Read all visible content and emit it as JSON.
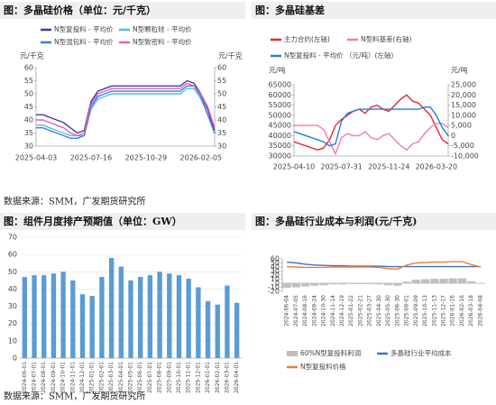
{
  "sources": [
    "数据来源：SMM，广发期货研究所",
    "数据来源：SMM，广发期货研究所"
  ],
  "chart_data": [
    {
      "type": "line",
      "title": "图：多晶硅价格（单位：元/千克）",
      "y_label": "元/千克",
      "y2_label": "元/千克",
      "categories": [
        "2025-04-03",
        null,
        null,
        null,
        null,
        null,
        null,
        null,
        "2025-07-16",
        null,
        null,
        null,
        null,
        null,
        null,
        null,
        "2025-10-29",
        null,
        null,
        null,
        null,
        null,
        null,
        null,
        "2026-02-05",
        null,
        null
      ],
      "series": [
        {
          "name": "N型复投料 - 平均价",
          "color": "#4b3b8f",
          "values": [
            42,
            42,
            41,
            40,
            39,
            37,
            35,
            36,
            47,
            51,
            52,
            53,
            53,
            53,
            53,
            53,
            53,
            53,
            53,
            53,
            53,
            53,
            55,
            54,
            50,
            44,
            36
          ]
        },
        {
          "name": "N型颗粒硅 - 平均价",
          "color": "#4fc3d9",
          "values": [
            38,
            38,
            37,
            36,
            35,
            34,
            34,
            34,
            44,
            48,
            49,
            50,
            50,
            50,
            50,
            50,
            50,
            50,
            50,
            50,
            50,
            50,
            52,
            52,
            48,
            42,
            35
          ]
        },
        {
          "name": "N型混包料 - 平均价",
          "color": "#3d7fd6",
          "values": [
            37,
            37,
            36,
            35,
            34,
            33,
            33,
            34,
            45,
            49,
            50,
            51,
            51,
            51,
            51,
            51,
            51,
            51,
            51,
            51,
            51,
            51,
            53,
            53,
            49,
            42,
            35
          ]
        },
        {
          "name": "N型致密料 - 平均价",
          "color": "#e060c0",
          "values": [
            40,
            40,
            39,
            38,
            37,
            35,
            34,
            35,
            46,
            50,
            51,
            52,
            52,
            52,
            52,
            52,
            52,
            52,
            52,
            52,
            52,
            52,
            54,
            53,
            50,
            45,
            37
          ]
        }
      ],
      "ylim": [
        30,
        60
      ],
      "yticks": [
        30,
        35,
        40,
        45,
        50,
        55,
        60
      ],
      "y2lim": [
        30,
        60
      ],
      "y2ticks": [
        30,
        35,
        40,
        45,
        50,
        55,
        60
      ]
    },
    {
      "type": "line",
      "title": "图：多晶硅基差",
      "y_label": "元/吨",
      "y2_label": "元/吨",
      "categories": [
        "2025-04-10",
        null,
        null,
        null,
        null,
        null,
        null,
        null,
        "2025-07-31",
        null,
        null,
        null,
        null,
        null,
        null,
        null,
        "2025-11-24",
        null,
        null,
        null,
        null,
        null,
        null,
        null,
        "2026-03-20",
        null,
        null
      ],
      "series": [
        {
          "name": "主力合约(左轴)",
          "color": "#e8262a",
          "values": [
            37000,
            36000,
            35000,
            34000,
            33000,
            34000,
            38000,
            45000,
            48000,
            50000,
            52000,
            53000,
            51000,
            54000,
            55000,
            53000,
            52000,
            55000,
            58000,
            60000,
            57000,
            56000,
            53000,
            50000,
            44000,
            38000,
            36000
          ]
        },
        {
          "name": "N型料基差(右轴)",
          "color": "#f07ab8",
          "axis": "y2",
          "values": [
            5000,
            5000,
            5000,
            5000,
            5000,
            3000,
            -3000,
            -9000,
            -1000,
            1000,
            0,
            0,
            2000,
            -1000,
            -2000,
            0,
            1000,
            -2000,
            -5000,
            -7000,
            -4000,
            -3000,
            1000,
            4000,
            6000,
            6000,
            4000
          ]
        },
        {
          "name": "N型复投料 - 平均价 （元/吨）(左轴)",
          "color": "#1f7fe0",
          "values": [
            42000,
            41000,
            40000,
            39000,
            38000,
            37000,
            35000,
            36000,
            47000,
            51000,
            52000,
            53000,
            53000,
            53000,
            53000,
            53000,
            53000,
            53000,
            53000,
            53000,
            53000,
            53000,
            54000,
            54000,
            50000,
            44000,
            40000
          ]
        }
      ],
      "ylim": [
        30000,
        65000
      ],
      "yticks": [
        30000,
        35000,
        40000,
        45000,
        50000,
        55000,
        60000,
        65000
      ],
      "y2lim": [
        -10000,
        25000
      ],
      "y2ticks": [
        {
          "value": -10000,
          "label": "-10,000"
        },
        {
          "value": -5000,
          "label": "-5,000"
        },
        0,
        {
          "value": 5000,
          "label": "5,000"
        },
        {
          "value": 10000,
          "label": "10,000"
        },
        {
          "value": 15000,
          "label": "15,000"
        },
        {
          "value": 20000,
          "label": "20,000"
        },
        {
          "value": 25000,
          "label": "25,000"
        }
      ]
    },
    {
      "type": "bar",
      "title": "图：组件月度排产预期值（单位：GW）",
      "categories": [
        "2024-06-01",
        "2024-07-01",
        "2024-08-01",
        "2024-09-01",
        "2024-10-01",
        "2024-11-01",
        "2024-12-01",
        "2025-01-01",
        "2025-02-01",
        "2025-03-01",
        "2025-04-01",
        "2025-05-01",
        "2025-06-01",
        "2025-07-01",
        "2025-08-01",
        "2025-09-01",
        "2025-10-01",
        "2025-11-01",
        "2025-12-01",
        "2026-01-01",
        "2026-02-01",
        "2026-03-01",
        "2026-04-01"
      ],
      "values": [
        47,
        48,
        48,
        49,
        50,
        45,
        37,
        36,
        47,
        58,
        53,
        45,
        47,
        48,
        50,
        49,
        48,
        46,
        41,
        33,
        31,
        42,
        32
      ],
      "color": "#5b9bd5",
      "grid": true,
      "ylim": [
        0,
        70
      ],
      "yticks": [
        0,
        10,
        20,
        30,
        40,
        50,
        60,
        70
      ]
    },
    {
      "type": "line",
      "title": "图：多晶硅行业成本与利润(元/千克)",
      "categories": [
        "2024-06-04",
        "2024-07-05",
        "2024-08-16",
        "2024-09-24",
        "2024-10-30",
        "2024-11-14",
        "2024-12-19",
        "2025-01-22",
        "2025-02-21",
        "2025-03-27",
        "2025-04-30",
        "2025-05-30",
        "2025-06-30",
        "2025-08-01",
        "2025-09-09",
        "2025-10-13",
        "2025-11-13",
        "2025-12-17",
        "2026-01-16",
        "2026-02-16",
        "2026-03-18",
        "2026-04-08"
      ],
      "series": [
        {
          "name": "60%N型复投料利润",
          "color": "#bfbfbf",
          "style": "bar",
          "values": [
            -11,
            -10,
            -8,
            -6,
            -5,
            -3,
            -3,
            -2,
            -2,
            -2,
            -3,
            -5,
            -6,
            4,
            9,
            10,
            11,
            11,
            12,
            12,
            5,
            -1
          ]
        },
        {
          "name": "多晶硅行业平均成本",
          "color": "#4472c4",
          "values": [
            52,
            50,
            47,
            45,
            44,
            43,
            43,
            42,
            42,
            42,
            42,
            41,
            41,
            41,
            41,
            41,
            41,
            41,
            41,
            41,
            41,
            41
          ]
        },
        {
          "name": "N型复投料价格",
          "color": "#ed7d31",
          "values": [
            41,
            40,
            39,
            39,
            39,
            40,
            40,
            40,
            40,
            40,
            39,
            36,
            35,
            45,
            50,
            51,
            52,
            52,
            53,
            53,
            46,
            40
          ]
        }
      ],
      "ylim": [
        -20,
        60
      ],
      "yticks": [
        -20,
        -10,
        0,
        10,
        20,
        30,
        40,
        50,
        60
      ]
    }
  ]
}
